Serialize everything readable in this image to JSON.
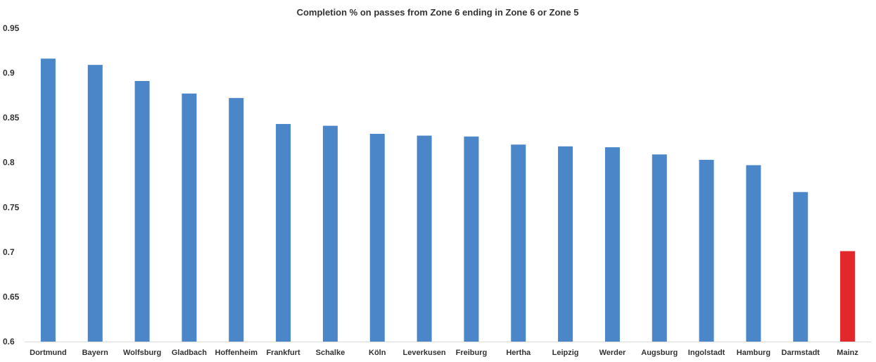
{
  "chart_data": {
    "type": "bar",
    "title": "Completion % on passes from Zone 6 ending in Zone 6 or Zone 5",
    "xlabel": "",
    "ylabel": "",
    "ylim": [
      0.6,
      0.95
    ],
    "yticks": [
      "0.95",
      "0.9",
      "0.85",
      "0.8",
      "0.75",
      "0.7",
      "0.65",
      "0.6"
    ],
    "grid": false,
    "legend": "none",
    "categories": [
      "Dortmund",
      "Bayern",
      "Wolfsburg",
      "Gladbach",
      "Hoffenheim",
      "Frankfurt",
      "Schalke",
      "Köln",
      "Leverkusen",
      "Freiburg",
      "Hertha",
      "Leipzig",
      "Werder",
      "Augsburg",
      "Ingolstadt",
      "Hamburg",
      "Darmstadt",
      "Mainz"
    ],
    "values": [
      0.916,
      0.909,
      0.891,
      0.877,
      0.872,
      0.843,
      0.841,
      0.832,
      0.83,
      0.829,
      0.82,
      0.818,
      0.817,
      0.809,
      0.803,
      0.797,
      0.767,
      0.701
    ],
    "colors": {
      "default": "#4A86C8",
      "highlight": "#E2282B",
      "highlight_category": "Mainz",
      "axis": "#d9d9d9",
      "text": "#333333"
    }
  }
}
